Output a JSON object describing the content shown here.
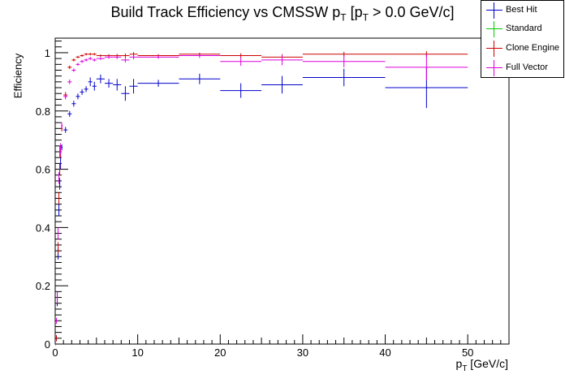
{
  "title_main": "Build Track Efficiency vs CMSSW p",
  "title_sub1": "T",
  "title_mid": " [p",
  "title_sub2": "T",
  "title_end": " > 0.0 GeV/c]",
  "chart_data": {
    "type": "scatter",
    "title": "Build Track Efficiency vs CMSSW pT [pT > 0.0 GeV/c]",
    "xlabel_main": "p",
    "xlabel_sub": "T",
    "xlabel_unit": " [GeV/c]",
    "ylabel": "Efficiency",
    "xlim": [
      0,
      55
    ],
    "ylim": [
      0,
      1.05
    ],
    "xticks": [
      0,
      10,
      20,
      30,
      40,
      50
    ],
    "yticks": [
      0,
      0.2,
      0.4,
      0.6,
      0.8,
      1
    ],
    "xtick_labels": [
      "0",
      "10",
      "20",
      "30",
      "40",
      "50"
    ],
    "ytick_labels": [
      "0",
      "0.2",
      "0.4",
      "0.6",
      "0.8",
      "1"
    ],
    "legend_position": "top-right",
    "series": [
      {
        "name": "Best Hit",
        "color": "#0000cc",
        "points": [
          {
            "x": 0.05,
            "y": 0.0,
            "xe": 0.05,
            "ye": 0.0
          },
          {
            "x": 0.15,
            "y": 0.02,
            "xe": 0.05,
            "ye": 0.01
          },
          {
            "x": 0.25,
            "y": 0.15,
            "xe": 0.05,
            "ye": 0.02
          },
          {
            "x": 0.35,
            "y": 0.31,
            "xe": 0.05,
            "ye": 0.02
          },
          {
            "x": 0.45,
            "y": 0.46,
            "xe": 0.05,
            "ye": 0.02
          },
          {
            "x": 0.55,
            "y": 0.55,
            "xe": 0.05,
            "ye": 0.02
          },
          {
            "x": 0.65,
            "y": 0.62,
            "xe": 0.05,
            "ye": 0.02
          },
          {
            "x": 0.8,
            "y": 0.675,
            "xe": 0.1,
            "ye": 0.01
          },
          {
            "x": 1.25,
            "y": 0.735,
            "xe": 0.25,
            "ye": 0.01
          },
          {
            "x": 1.75,
            "y": 0.79,
            "xe": 0.25,
            "ye": 0.01
          },
          {
            "x": 2.25,
            "y": 0.825,
            "xe": 0.25,
            "ye": 0.01
          },
          {
            "x": 2.75,
            "y": 0.85,
            "xe": 0.25,
            "ye": 0.01
          },
          {
            "x": 3.25,
            "y": 0.865,
            "xe": 0.25,
            "ye": 0.01
          },
          {
            "x": 3.75,
            "y": 0.875,
            "xe": 0.25,
            "ye": 0.01
          },
          {
            "x": 4.25,
            "y": 0.9,
            "xe": 0.25,
            "ye": 0.015
          },
          {
            "x": 4.75,
            "y": 0.885,
            "xe": 0.25,
            "ye": 0.015
          },
          {
            "x": 5.5,
            "y": 0.91,
            "xe": 0.5,
            "ye": 0.015
          },
          {
            "x": 6.5,
            "y": 0.895,
            "xe": 0.5,
            "ye": 0.015
          },
          {
            "x": 7.5,
            "y": 0.89,
            "xe": 0.5,
            "ye": 0.02
          },
          {
            "x": 8.5,
            "y": 0.86,
            "xe": 0.5,
            "ye": 0.025
          },
          {
            "x": 9.5,
            "y": 0.885,
            "xe": 0.5,
            "ye": 0.025
          },
          {
            "x": 12.5,
            "y": 0.895,
            "xe": 2.5,
            "ye": 0.012
          },
          {
            "x": 17.5,
            "y": 0.91,
            "xe": 2.5,
            "ye": 0.018
          },
          {
            "x": 22.5,
            "y": 0.87,
            "xe": 2.5,
            "ye": 0.025
          },
          {
            "x": 27.5,
            "y": 0.89,
            "xe": 2.5,
            "ye": 0.03
          },
          {
            "x": 35,
            "y": 0.915,
            "xe": 5,
            "ye": 0.03
          },
          {
            "x": 45,
            "y": 0.88,
            "xe": 5,
            "ye": 0.07
          }
        ]
      },
      {
        "name": "Standard",
        "color": "#00cc00",
        "points": []
      },
      {
        "name": "Clone Engine",
        "color": "#cc0000",
        "points": [
          {
            "x": 0.05,
            "y": 0.0,
            "xe": 0.05,
            "ye": 0.0
          },
          {
            "x": 0.15,
            "y": 0.02,
            "xe": 0.05,
            "ye": 0.01
          },
          {
            "x": 0.25,
            "y": 0.16,
            "xe": 0.05,
            "ye": 0.02
          },
          {
            "x": 0.35,
            "y": 0.33,
            "xe": 0.05,
            "ye": 0.02
          },
          {
            "x": 0.45,
            "y": 0.5,
            "xe": 0.05,
            "ye": 0.02
          },
          {
            "x": 0.55,
            "y": 0.6,
            "xe": 0.05,
            "ye": 0.02
          },
          {
            "x": 0.65,
            "y": 0.66,
            "xe": 0.05,
            "ye": 0.02
          },
          {
            "x": 0.8,
            "y": 0.74,
            "xe": 0.1,
            "ye": 0.01
          },
          {
            "x": 1.25,
            "y": 0.855,
            "xe": 0.25,
            "ye": 0.01
          },
          {
            "x": 1.75,
            "y": 0.95,
            "xe": 0.25,
            "ye": 0.006
          },
          {
            "x": 2.25,
            "y": 0.975,
            "xe": 0.25,
            "ye": 0.005
          },
          {
            "x": 2.75,
            "y": 0.985,
            "xe": 0.25,
            "ye": 0.004
          },
          {
            "x": 3.25,
            "y": 0.99,
            "xe": 0.25,
            "ye": 0.004
          },
          {
            "x": 3.75,
            "y": 0.995,
            "xe": 0.25,
            "ye": 0.004
          },
          {
            "x": 4.25,
            "y": 0.995,
            "xe": 0.25,
            "ye": 0.004
          },
          {
            "x": 4.75,
            "y": 0.995,
            "xe": 0.25,
            "ye": 0.004
          },
          {
            "x": 5.5,
            "y": 0.99,
            "xe": 0.5,
            "ye": 0.004
          },
          {
            "x": 6.5,
            "y": 0.99,
            "xe": 0.5,
            "ye": 0.005
          },
          {
            "x": 7.5,
            "y": 0.99,
            "xe": 0.5,
            "ye": 0.006
          },
          {
            "x": 8.5,
            "y": 0.99,
            "xe": 0.5,
            "ye": 0.007
          },
          {
            "x": 9.5,
            "y": 0.995,
            "xe": 0.5,
            "ye": 0.007
          },
          {
            "x": 12.5,
            "y": 0.99,
            "xe": 2.5,
            "ye": 0.005
          },
          {
            "x": 17.5,
            "y": 0.995,
            "xe": 2.5,
            "ye": 0.005
          },
          {
            "x": 22.5,
            "y": 0.99,
            "xe": 2.5,
            "ye": 0.008
          },
          {
            "x": 27.5,
            "y": 0.985,
            "xe": 2.5,
            "ye": 0.01
          },
          {
            "x": 35,
            "y": 0.995,
            "xe": 5,
            "ye": 0.008
          },
          {
            "x": 45,
            "y": 0.995,
            "xe": 5,
            "ye": 0.01
          }
        ]
      },
      {
        "name": "Full Vector",
        "color": "#dd00dd",
        "points": [
          {
            "x": 0.05,
            "y": 0.0,
            "xe": 0.05,
            "ye": 0.0
          },
          {
            "x": 0.15,
            "y": 0.08,
            "xe": 0.05,
            "ye": 0.01
          },
          {
            "x": 0.25,
            "y": 0.16,
            "xe": 0.05,
            "ye": 0.02
          },
          {
            "x": 0.35,
            "y": 0.38,
            "xe": 0.05,
            "ye": 0.02
          },
          {
            "x": 0.45,
            "y": 0.57,
            "xe": 0.05,
            "ye": 0.02
          },
          {
            "x": 0.55,
            "y": 0.66,
            "xe": 0.05,
            "ye": 0.02
          },
          {
            "x": 0.65,
            "y": 0.67,
            "xe": 0.05,
            "ye": 0.02
          },
          {
            "x": 0.8,
            "y": 0.75,
            "xe": 0.1,
            "ye": 0.01
          },
          {
            "x": 1.25,
            "y": 0.85,
            "xe": 0.25,
            "ye": 0.01
          },
          {
            "x": 1.75,
            "y": 0.9,
            "xe": 0.25,
            "ye": 0.008
          },
          {
            "x": 2.25,
            "y": 0.94,
            "xe": 0.25,
            "ye": 0.006
          },
          {
            "x": 2.75,
            "y": 0.96,
            "xe": 0.25,
            "ye": 0.005
          },
          {
            "x": 3.25,
            "y": 0.97,
            "xe": 0.25,
            "ye": 0.005
          },
          {
            "x": 3.75,
            "y": 0.975,
            "xe": 0.25,
            "ye": 0.005
          },
          {
            "x": 4.25,
            "y": 0.98,
            "xe": 0.25,
            "ye": 0.005
          },
          {
            "x": 4.75,
            "y": 0.975,
            "xe": 0.25,
            "ye": 0.005
          },
          {
            "x": 5.5,
            "y": 0.98,
            "xe": 0.5,
            "ye": 0.005
          },
          {
            "x": 6.5,
            "y": 0.985,
            "xe": 0.5,
            "ye": 0.006
          },
          {
            "x": 7.5,
            "y": 0.985,
            "xe": 0.5,
            "ye": 0.007
          },
          {
            "x": 8.5,
            "y": 0.975,
            "xe": 0.5,
            "ye": 0.008
          },
          {
            "x": 9.5,
            "y": 0.985,
            "xe": 0.5,
            "ye": 0.008
          },
          {
            "x": 12.5,
            "y": 0.985,
            "xe": 2.5,
            "ye": 0.006
          },
          {
            "x": 17.5,
            "y": 0.99,
            "xe": 2.5,
            "ye": 0.008
          },
          {
            "x": 22.5,
            "y": 0.97,
            "xe": 2.5,
            "ye": 0.015
          },
          {
            "x": 27.5,
            "y": 0.975,
            "xe": 2.5,
            "ye": 0.018
          },
          {
            "x": 35,
            "y": 0.97,
            "xe": 5,
            "ye": 0.02
          },
          {
            "x": 45,
            "y": 0.95,
            "xe": 5,
            "ye": 0.045
          }
        ]
      }
    ]
  }
}
